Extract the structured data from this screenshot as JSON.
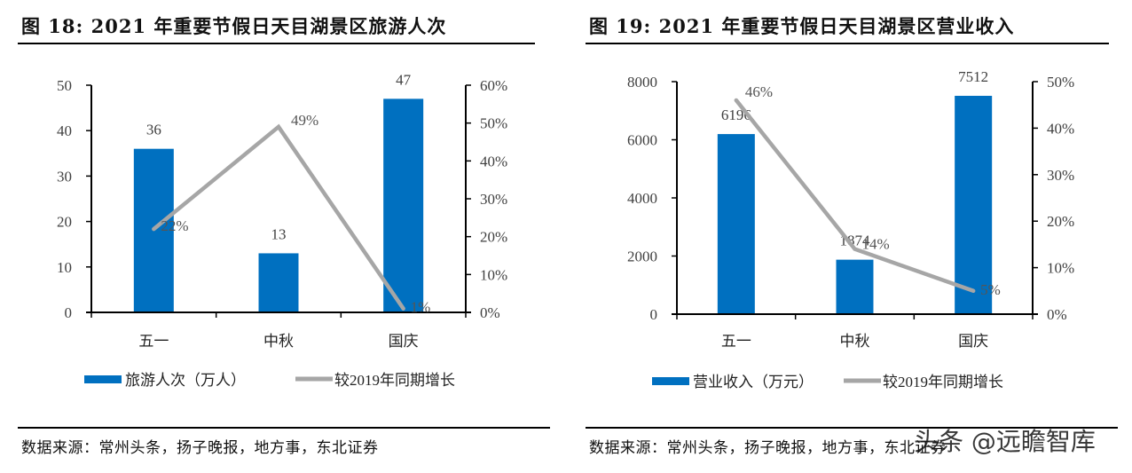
{
  "figures": [
    {
      "title": "图  18:  2021 年重要节假日天目湖景区旅游人次",
      "source": "数据来源：常州头条，扬子晚报，地方事，东北证券"
    },
    {
      "title": "图  19:  2021 年重要节假日天目湖景区营业收入",
      "source": "数据来源：常州头条，扬子晚报，地方事，东北证券"
    }
  ],
  "watermark": "头条 @远瞻智库",
  "colors": {
    "bar": "#0070C0",
    "line": "#A6A6A6",
    "axis": "#000000",
    "text": "#404040"
  },
  "chart_data": [
    {
      "type": "bar",
      "title": "2021 年重要节假日天目湖景区旅游人次",
      "categories": [
        "五一",
        "中秋",
        "国庆"
      ],
      "series": [
        {
          "name": "旅游人次（万人）",
          "type": "bar",
          "axis": "left",
          "values": [
            36,
            13,
            47
          ],
          "labels": [
            "36",
            "13",
            "47"
          ]
        },
        {
          "name": "较2019年同期增长",
          "type": "line",
          "axis": "right",
          "values": [
            22,
            49,
            1
          ],
          "labels": [
            "22%",
            "49%",
            "1%"
          ]
        }
      ],
      "y_left": {
        "min": 0,
        "max": 50,
        "ticks": [
          "0",
          "10",
          "20",
          "30",
          "40",
          "50"
        ]
      },
      "y_right": {
        "min": 0,
        "max": 60,
        "ticks": [
          "0%",
          "10%",
          "20%",
          "30%",
          "40%",
          "50%",
          "60%"
        ]
      },
      "legend": "bottom",
      "grid": false
    },
    {
      "type": "bar",
      "title": "2021 年重要节假日天目湖景区营业收入",
      "categories": [
        "五一",
        "中秋",
        "国庆"
      ],
      "series": [
        {
          "name": "营业收入（万元）",
          "type": "bar",
          "axis": "left",
          "values": [
            6196,
            1874,
            7512
          ],
          "labels": [
            "6196",
            "1874",
            "7512"
          ]
        },
        {
          "name": "较2019年同期增长",
          "type": "line",
          "axis": "right",
          "values": [
            46,
            14,
            5
          ],
          "labels": [
            "46%",
            "14%",
            "5%"
          ]
        }
      ],
      "y_left": {
        "min": 0,
        "max": 8000,
        "ticks": [
          "0",
          "2000",
          "4000",
          "6000",
          "8000"
        ]
      },
      "y_right": {
        "min": 0,
        "max": 50,
        "ticks": [
          "0%",
          "10%",
          "20%",
          "30%",
          "40%",
          "50%"
        ]
      },
      "legend": "bottom",
      "grid": false
    }
  ]
}
